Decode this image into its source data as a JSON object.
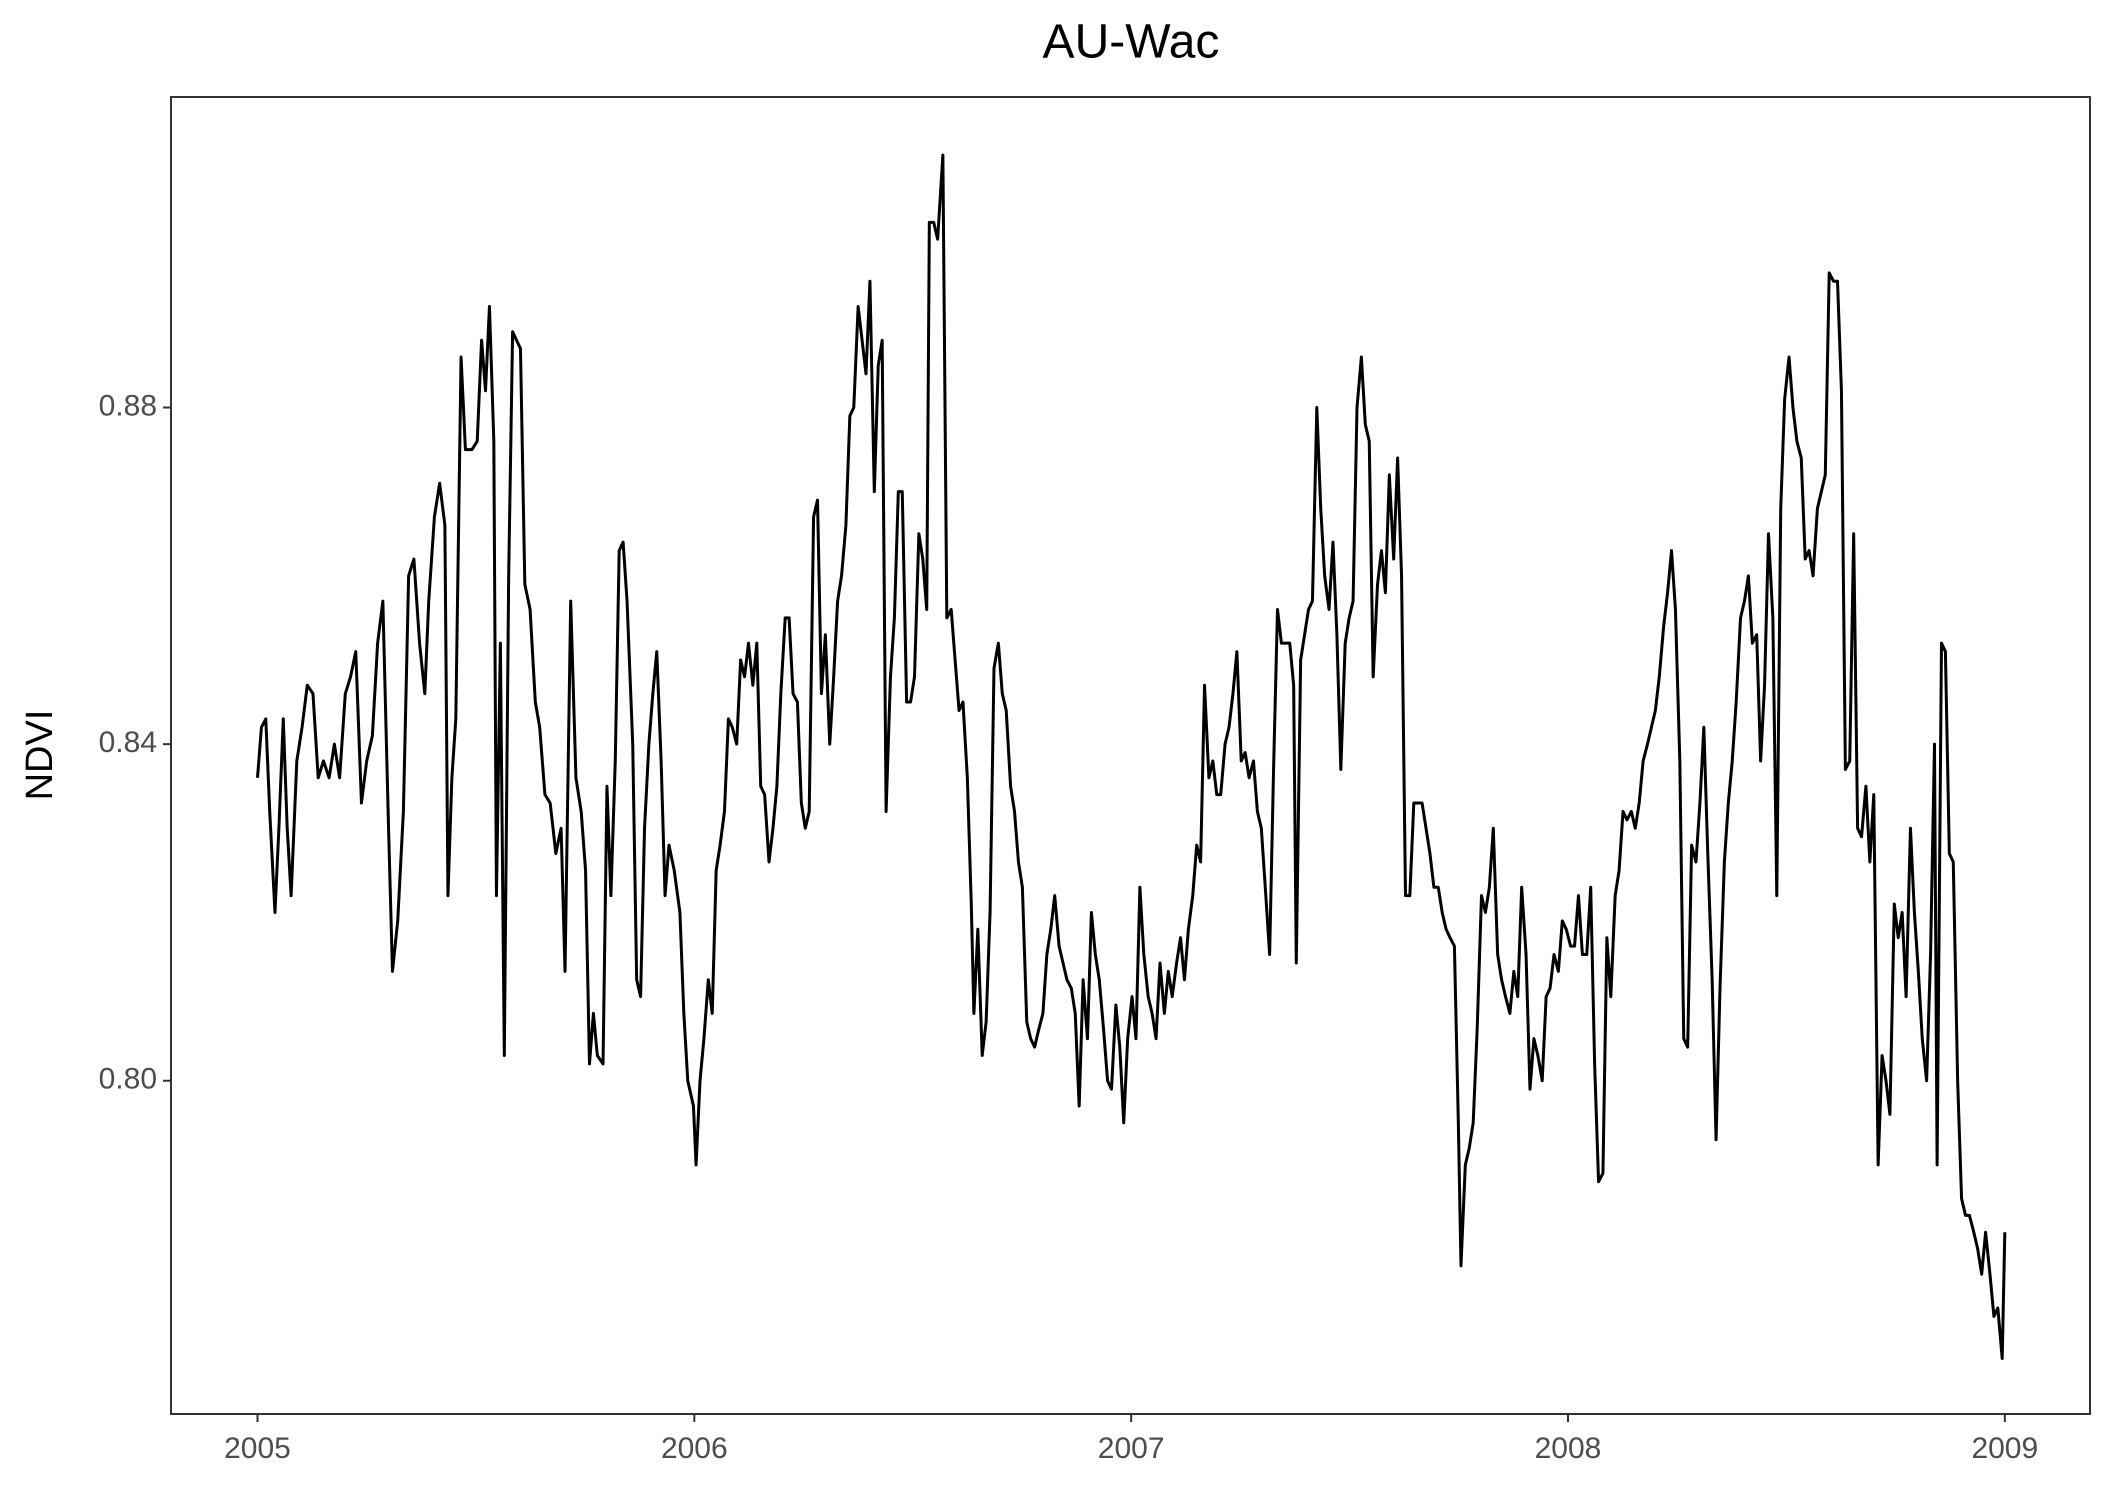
{
  "chart_data": {
    "type": "line",
    "title": "AU-Wac",
    "y_label": "NDVI",
    "color": "#000000",
    "grid": false,
    "xlim": [
      2004.802,
      2009.195
    ],
    "xticks": [
      2005,
      2006,
      2007,
      2008,
      2009
    ],
    "ylim": [
      0.7604,
      0.9169
    ],
    "yticks": [
      {
        "value": 0.8,
        "label": "0.80"
      },
      0.84,
      0.88
    ],
    "x": [
      2005,
      2005.009,
      2005.019,
      2005.028,
      2005.04,
      2005.049,
      2005.059,
      2005.068,
      2005.077,
      2005.09,
      2005.102,
      2005.114,
      2005.127,
      2005.139,
      2005.151,
      2005.164,
      2005.176,
      2005.188,
      2005.201,
      2005.213,
      2005.225,
      2005.238,
      2005.25,
      2005.263,
      2005.275,
      2005.287,
      2005.3,
      2005.309,
      2005.321,
      2005.334,
      2005.346,
      2005.358,
      2005.371,
      2005.383,
      2005.392,
      2005.405,
      2005.417,
      2005.429,
      2005.436,
      2005.445,
      2005.454,
      2005.466,
      2005.476,
      2005.491,
      2005.503,
      2005.513,
      2005.522,
      2005.531,
      2005.541,
      2005.547,
      2005.556,
      2005.565,
      2005.575,
      2005.584,
      2005.593,
      2005.602,
      2005.612,
      2005.624,
      2005.636,
      2005.646,
      2005.658,
      2005.67,
      2005.683,
      2005.695,
      2005.704,
      2005.717,
      2005.729,
      2005.741,
      2005.751,
      2005.76,
      2005.769,
      2005.778,
      2005.791,
      2005.8,
      2005.809,
      2005.819,
      2005.828,
      2005.837,
      2005.846,
      2005.859,
      2005.868,
      2005.877,
      2005.886,
      2005.896,
      2005.905,
      2005.914,
      2005.924,
      2005.933,
      2005.942,
      2005.954,
      2005.967,
      2005.976,
      2005.985,
      2005.998,
      2006.004,
      2006.013,
      2006.022,
      2006.032,
      2006.041,
      2006.05,
      2006.059,
      2006.069,
      2006.078,
      2006.087,
      2006.097,
      2006.106,
      2006.115,
      2006.124,
      2006.134,
      2006.143,
      2006.152,
      2006.161,
      2006.171,
      2006.18,
      2006.189,
      2006.198,
      2006.208,
      2006.217,
      2006.226,
      2006.236,
      2006.245,
      2006.254,
      2006.263,
      2006.273,
      2006.282,
      2006.291,
      2006.3,
      2006.31,
      2006.319,
      2006.328,
      2006.337,
      2006.347,
      2006.356,
      2006.365,
      2006.375,
      2006.384,
      2006.393,
      2006.402,
      2006.412,
      2006.421,
      2006.43,
      2006.439,
      2006.449,
      2006.458,
      2006.467,
      2006.476,
      2006.486,
      2006.495,
      2006.504,
      2006.514,
      2006.523,
      2006.532,
      2006.538,
      2006.548,
      2006.557,
      2006.569,
      2006.578,
      2006.588,
      2006.597,
      2006.606,
      2006.615,
      2006.625,
      2006.634,
      2006.64,
      2006.649,
      2006.659,
      2006.668,
      2006.677,
      2006.686,
      2006.696,
      2006.705,
      2006.714,
      2006.724,
      2006.733,
      2006.742,
      2006.751,
      2006.761,
      2006.77,
      2006.779,
      2006.788,
      2006.798,
      2006.807,
      2006.816,
      2006.825,
      2006.835,
      2006.844,
      2006.853,
      2006.863,
      2006.872,
      2006.881,
      2006.89,
      2006.9,
      2006.909,
      2006.918,
      2006.927,
      2006.937,
      2006.946,
      2006.955,
      2006.965,
      2006.974,
      2006.983,
      2006.992,
      2007.002,
      2007.011,
      2007.02,
      2007.029,
      2007.039,
      2007.048,
      2007.057,
      2007.066,
      2007.076,
      2007.085,
      2007.094,
      2007.104,
      2007.113,
      2007.122,
      2007.131,
      2007.141,
      2007.15,
      2007.159,
      2007.168,
      2007.178,
      2007.187,
      2007.196,
      2007.205,
      2007.215,
      2007.224,
      2007.233,
      2007.242,
      2007.252,
      2007.261,
      2007.27,
      2007.28,
      2007.289,
      2007.298,
      2007.307,
      2007.317,
      2007.326,
      2007.335,
      2007.344,
      2007.354,
      2007.363,
      2007.372,
      2007.378,
      2007.388,
      2007.397,
      2007.406,
      2007.415,
      2007.425,
      2007.434,
      2007.443,
      2007.453,
      2007.462,
      2007.471,
      2007.48,
      2007.49,
      2007.499,
      2007.508,
      2007.517,
      2007.527,
      2007.536,
      2007.545,
      2007.554,
      2007.564,
      2007.573,
      2007.582,
      2007.591,
      2007.601,
      2007.61,
      2007.619,
      2007.628,
      2007.638,
      2007.647,
      2007.656,
      2007.666,
      2007.675,
      2007.684,
      2007.693,
      2007.703,
      2007.712,
      2007.721,
      2007.73,
      2007.74,
      2007.749,
      2007.755,
      2007.765,
      2007.774,
      2007.783,
      2007.792,
      2007.802,
      2007.811,
      2007.82,
      2007.829,
      2007.839,
      2007.848,
      2007.857,
      2007.867,
      2007.876,
      2007.885,
      2007.894,
      2007.904,
      2007.913,
      2007.922,
      2007.931,
      2007.941,
      2007.95,
      2007.959,
      2007.968,
      2007.978,
      2007.987,
      2007.996,
      2008.006,
      2008.015,
      2008.024,
      2008.033,
      2008.043,
      2008.052,
      2008.061,
      2008.07,
      2008.08,
      2008.089,
      2008.098,
      2008.108,
      2008.117,
      2008.126,
      2008.135,
      2008.145,
      2008.154,
      2008.163,
      2008.172,
      2008.182,
      2008.191,
      2008.2,
      2008.209,
      2008.219,
      2008.228,
      2008.237,
      2008.246,
      2008.256,
      2008.265,
      2008.274,
      2008.283,
      2008.293,
      2008.302,
      2008.311,
      2008.32,
      2008.33,
      2008.339,
      2008.348,
      2008.358,
      2008.367,
      2008.376,
      2008.385,
      2008.395,
      2008.404,
      2008.413,
      2008.422,
      2008.432,
      2008.441,
      2008.45,
      2008.459,
      2008.469,
      2008.478,
      2008.487,
      2008.496,
      2008.506,
      2008.515,
      2008.524,
      2008.534,
      2008.543,
      2008.552,
      2008.561,
      2008.571,
      2008.58,
      2008.589,
      2008.598,
      2008.608,
      2008.617,
      2008.626,
      2008.635,
      2008.645,
      2008.654,
      2008.663,
      2008.672,
      2008.682,
      2008.691,
      2008.7,
      2008.71,
      2008.719,
      2008.728,
      2008.737,
      2008.747,
      2008.756,
      2008.765,
      2008.774,
      2008.784,
      2008.793,
      2008.802,
      2008.811,
      2008.821,
      2008.83,
      2008.839,
      2008.845,
      2008.855,
      2008.864,
      2008.873,
      2008.882,
      2008.892,
      2008.901,
      2008.91,
      2008.919,
      2008.929,
      2008.938,
      2008.947,
      2008.956,
      2008.966,
      2008.975,
      2008.984,
      2008.994,
      2009
    ],
    "values": [
      0.836,
      0.842,
      0.843,
      0.832,
      0.82,
      0.83,
      0.843,
      0.83,
      0.822,
      0.838,
      0.842,
      0.847,
      0.846,
      0.836,
      0.838,
      0.836,
      0.84,
      0.836,
      0.846,
      0.848,
      0.851,
      0.833,
      0.838,
      0.841,
      0.852,
      0.857,
      0.83,
      0.813,
      0.819,
      0.832,
      0.86,
      0.862,
      0.852,
      0.846,
      0.857,
      0.867,
      0.871,
      0.866,
      0.822,
      0.836,
      0.843,
      0.886,
      0.875,
      0.875,
      0.876,
      0.888,
      0.882,
      0.892,
      0.876,
      0.822,
      0.852,
      0.803,
      0.86,
      0.889,
      0.888,
      0.887,
      0.859,
      0.856,
      0.845,
      0.842,
      0.834,
      0.833,
      0.827,
      0.83,
      0.813,
      0.857,
      0.836,
      0.832,
      0.825,
      0.802,
      0.808,
      0.803,
      0.802,
      0.835,
      0.822,
      0.838,
      0.863,
      0.864,
      0.857,
      0.84,
      0.812,
      0.81,
      0.83,
      0.84,
      0.846,
      0.851,
      0.838,
      0.822,
      0.828,
      0.825,
      0.82,
      0.808,
      0.8,
      0.797,
      0.79,
      0.8,
      0.805,
      0.812,
      0.808,
      0.825,
      0.828,
      0.832,
      0.843,
      0.842,
      0.84,
      0.85,
      0.848,
      0.852,
      0.847,
      0.852,
      0.835,
      0.834,
      0.826,
      0.83,
      0.835,
      0.846,
      0.855,
      0.855,
      0.846,
      0.845,
      0.833,
      0.83,
      0.832,
      0.867,
      0.869,
      0.846,
      0.853,
      0.84,
      0.848,
      0.857,
      0.86,
      0.866,
      0.879,
      0.88,
      0.892,
      0.888,
      0.884,
      0.895,
      0.87,
      0.885,
      0.888,
      0.832,
      0.848,
      0.855,
      0.87,
      0.87,
      0.845,
      0.845,
      0.848,
      0.865,
      0.862,
      0.856,
      0.902,
      0.902,
      0.9,
      0.91,
      0.855,
      0.856,
      0.85,
      0.844,
      0.845,
      0.836,
      0.821,
      0.808,
      0.818,
      0.803,
      0.807,
      0.82,
      0.849,
      0.852,
      0.846,
      0.844,
      0.835,
      0.832,
      0.826,
      0.823,
      0.807,
      0.805,
      0.804,
      0.806,
      0.808,
      0.815,
      0.818,
      0.822,
      0.816,
      0.814,
      0.812,
      0.811,
      0.808,
      0.797,
      0.812,
      0.805,
      0.82,
      0.815,
      0.812,
      0.806,
      0.8,
      0.799,
      0.809,
      0.804,
      0.795,
      0.805,
      0.81,
      0.805,
      0.823,
      0.815,
      0.81,
      0.808,
      0.805,
      0.814,
      0.808,
      0.813,
      0.81,
      0.814,
      0.817,
      0.812,
      0.818,
      0.822,
      0.828,
      0.826,
      0.847,
      0.836,
      0.838,
      0.834,
      0.834,
      0.84,
      0.842,
      0.846,
      0.851,
      0.838,
      0.839,
      0.836,
      0.838,
      0.832,
      0.83,
      0.823,
      0.815,
      0.837,
      0.856,
      0.852,
      0.852,
      0.852,
      0.847,
      0.814,
      0.85,
      0.853,
      0.856,
      0.857,
      0.88,
      0.868,
      0.86,
      0.856,
      0.864,
      0.853,
      0.837,
      0.852,
      0.855,
      0.857,
      0.88,
      0.886,
      0.878,
      0.876,
      0.848,
      0.859,
      0.863,
      0.858,
      0.872,
      0.862,
      0.874,
      0.86,
      0.822,
      0.822,
      0.833,
      0.833,
      0.833,
      0.83,
      0.827,
      0.823,
      0.823,
      0.82,
      0.818,
      0.817,
      0.816,
      0.795,
      0.778,
      0.79,
      0.792,
      0.795,
      0.806,
      0.822,
      0.82,
      0.823,
      0.83,
      0.815,
      0.812,
      0.81,
      0.808,
      0.813,
      0.81,
      0.823,
      0.815,
      0.799,
      0.805,
      0.803,
      0.8,
      0.81,
      0.811,
      0.815,
      0.813,
      0.819,
      0.818,
      0.816,
      0.816,
      0.822,
      0.815,
      0.815,
      0.823,
      0.802,
      0.788,
      0.789,
      0.817,
      0.81,
      0.822,
      0.825,
      0.832,
      0.831,
      0.832,
      0.83,
      0.833,
      0.838,
      0.84,
      0.842,
      0.844,
      0.848,
      0.854,
      0.858,
      0.863,
      0.856,
      0.838,
      0.805,
      0.804,
      0.828,
      0.826,
      0.833,
      0.842,
      0.827,
      0.812,
      0.793,
      0.811,
      0.826,
      0.833,
      0.838,
      0.845,
      0.855,
      0.857,
      0.86,
      0.852,
      0.853,
      0.838,
      0.847,
      0.865,
      0.855,
      0.822,
      0.868,
      0.881,
      0.886,
      0.88,
      0.876,
      0.874,
      0.862,
      0.863,
      0.86,
      0.868,
      0.87,
      0.872,
      0.896,
      0.895,
      0.895,
      0.882,
      0.837,
      0.838,
      0.865,
      0.83,
      0.829,
      0.835,
      0.826,
      0.834,
      0.79,
      0.803,
      0.8,
      0.796,
      0.821,
      0.817,
      0.82,
      0.81,
      0.83,
      0.82,
      0.813,
      0.805,
      0.8,
      0.815,
      0.84,
      0.79,
      0.852,
      0.851,
      0.827,
      0.826,
      0.8,
      0.786,
      0.784,
      0.784,
      0.782,
      0.78,
      0.777,
      0.782,
      0.777,
      0.772,
      0.773,
      0.767,
      0.782
    ]
  }
}
